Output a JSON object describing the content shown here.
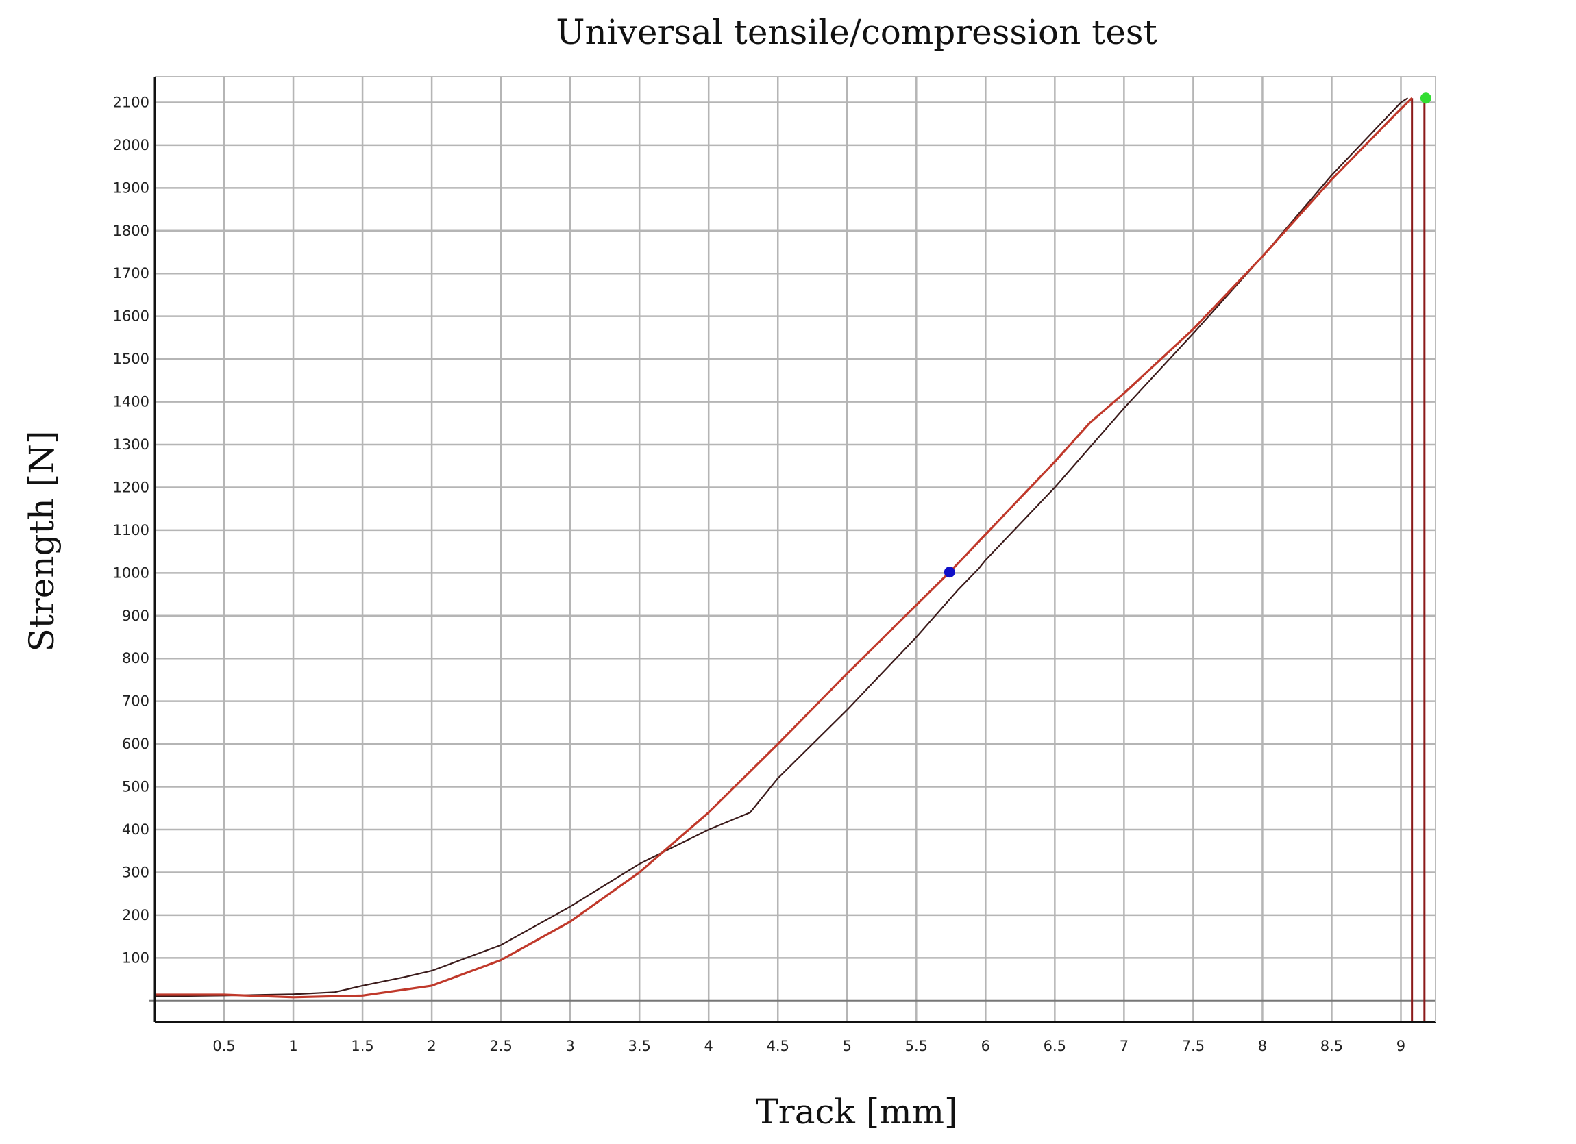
{
  "chart_data": {
    "type": "line",
    "title": "Universal tensile/compression test",
    "xlabel": "Track [mm]",
    "ylabel": "Strength [N]",
    "xlim": [
      0,
      9.25
    ],
    "ylim": [
      -50,
      2160
    ],
    "grid": true,
    "x_ticks": [
      "0.5",
      "1",
      "1.5",
      "2",
      "2.5",
      "3",
      "3.5",
      "4",
      "4.5",
      "5",
      "5.5",
      "6",
      "6.5",
      "7",
      "7.5",
      "8",
      "8.5",
      "9"
    ],
    "y_ticks": [
      "100",
      "200",
      "300",
      "400",
      "500",
      "600",
      "700",
      "800",
      "900",
      "1000",
      "1100",
      "1200",
      "1300",
      "1400",
      "1500",
      "1600",
      "1700",
      "1800",
      "1900",
      "2000",
      "2100"
    ],
    "series": [
      {
        "color": "#3a1a1a",
        "x": [
          0,
          0.5,
          1.0,
          1.3,
          1.5,
          1.8,
          2.0,
          2.5,
          3.0,
          3.5,
          4.0,
          4.3,
          4.5,
          5.0,
          5.5,
          5.8,
          5.95,
          6.0,
          6.5,
          7.0,
          7.5,
          8.0,
          8.5,
          9.0,
          9.05
        ],
        "y": [
          10,
          12,
          15,
          20,
          35,
          55,
          70,
          130,
          220,
          320,
          400,
          440,
          520,
          680,
          850,
          960,
          1010,
          1030,
          1200,
          1385,
          1560,
          1740,
          1930,
          2100,
          2110
        ]
      },
      {
        "color": "#c0392b",
        "x": [
          0,
          0.5,
          1.0,
          1.5,
          2.0,
          2.5,
          3.0,
          3.5,
          4.0,
          4.5,
          5.0,
          5.5,
          5.75,
          6.0,
          6.5,
          6.75,
          7.0,
          7.5,
          8.0,
          8.5,
          9.0,
          9.08
        ],
        "y": [
          14,
          14,
          8,
          12,
          35,
          95,
          185,
          300,
          440,
          600,
          765,
          925,
          1005,
          1090,
          1260,
          1350,
          1420,
          1570,
          1740,
          1920,
          2085,
          2110
        ]
      }
    ],
    "vertical_lines": [
      9.08,
      9.17
    ],
    "markers": [
      {
        "x": 5.74,
        "y": 1002,
        "color": "#1010c8"
      },
      {
        "x": 9.18,
        "y": 2110,
        "color": "#33dd33"
      }
    ]
  }
}
